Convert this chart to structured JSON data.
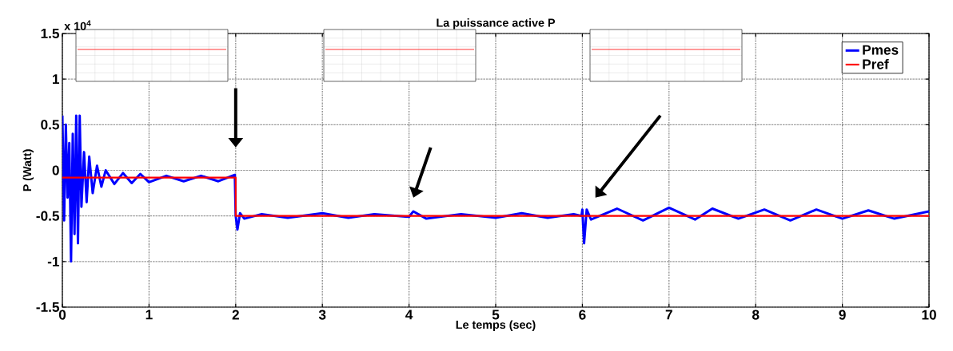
{
  "chart_data": {
    "type": "line",
    "title": "La puissance active P",
    "xlabel": "Le temps (sec)",
    "ylabel": "P (Watt)",
    "annotations": [
      "x 10$^{4}$"
    ],
    "xlim": [
      0,
      10
    ],
    "xticks": [
      0,
      1,
      2,
      3,
      4,
      5,
      6,
      7,
      8,
      9,
      10
    ],
    "ylim": [
      -1.5,
      1.5
    ],
    "yticks": [
      -1.5,
      -1,
      -0.5,
      0,
      0.5,
      1,
      1.5
    ],
    "grid": true,
    "legend": "top right",
    "marker": "none",
    "line_style": "solid",
    "series": [
      {
        "name": "Pmes",
        "color": "#0000ff",
        "x": [
          0,
          0.02,
          0.04,
          0.06,
          0.08,
          0.1,
          0.12,
          0.14,
          0.16,
          0.18,
          0.2,
          0.22,
          0.25,
          0.28,
          0.31,
          0.35,
          0.4,
          0.45,
          0.5,
          0.6,
          0.7,
          0.8,
          0.9,
          1.0,
          1.2,
          1.4,
          1.6,
          1.8,
          1.99,
          2.0,
          2.02,
          2.05,
          2.1,
          2.3,
          2.6,
          3.0,
          3.3,
          3.6,
          4.0,
          4.05,
          4.2,
          4.6,
          5.0,
          5.3,
          5.6,
          5.9,
          5.99,
          6.0,
          6.02,
          6.05,
          6.1,
          6.4,
          6.7,
          7.0,
          7.3,
          7.5,
          7.8,
          8.1,
          8.4,
          8.7,
          9.0,
          9.3,
          9.6,
          10
        ],
        "values": [
          0.6,
          -0.55,
          0.5,
          -0.3,
          0.3,
          -1.0,
          0.4,
          -0.7,
          0.6,
          -0.8,
          0.6,
          -0.4,
          0.2,
          -0.35,
          0.15,
          -0.25,
          0.05,
          -0.18,
          0,
          -0.15,
          -0.03,
          -0.14,
          -0.04,
          -0.13,
          -0.06,
          -0.12,
          -0.06,
          -0.12,
          -0.05,
          -0.5,
          -0.65,
          -0.47,
          -0.53,
          -0.48,
          -0.52,
          -0.47,
          -0.52,
          -0.48,
          -0.51,
          -0.45,
          -0.53,
          -0.48,
          -0.52,
          -0.47,
          -0.52,
          -0.48,
          -0.5,
          -0.43,
          -0.8,
          -0.43,
          -0.54,
          -0.42,
          -0.55,
          -0.41,
          -0.54,
          -0.42,
          -0.53,
          -0.43,
          -0.55,
          -0.43,
          -0.53,
          -0.44,
          -0.53,
          -0.45
        ]
      },
      {
        "name": "Pref",
        "color": "#ff0000",
        "x": [
          0,
          2,
          2,
          10
        ],
        "values": [
          -0.08,
          -0.08,
          -0.5,
          -0.5
        ]
      }
    ]
  }
}
